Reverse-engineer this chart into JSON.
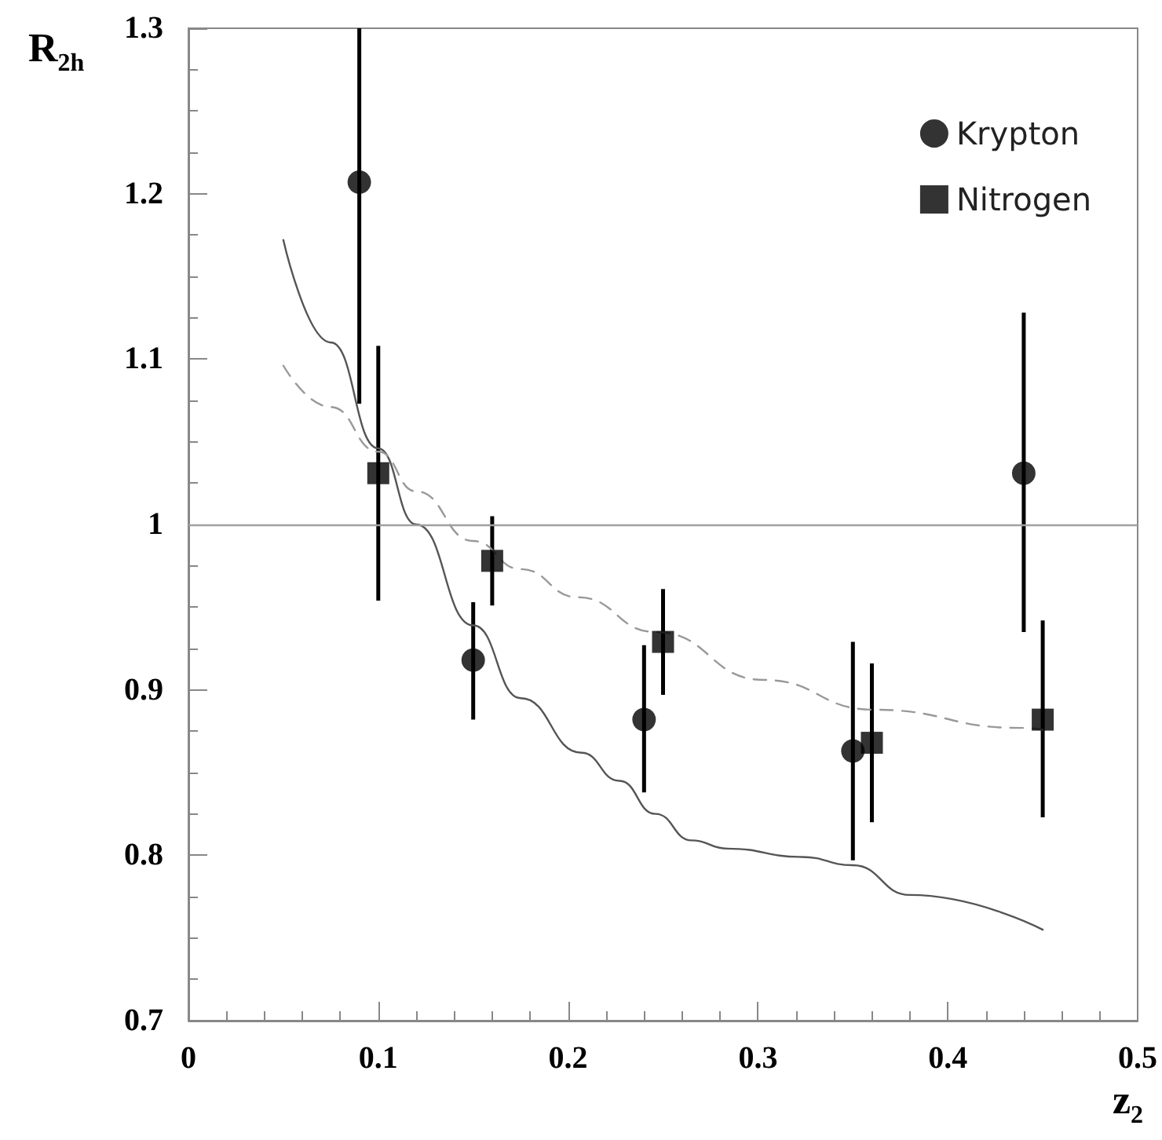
{
  "chart_data": {
    "type": "scatter",
    "xlabel": "z$_{2}$",
    "ylabel": "R$_{2h}$",
    "xlim": [
      0,
      0.5
    ],
    "xticks": [
      0,
      0.1,
      0.2,
      0.3,
      0.4,
      0.5
    ],
    "ylim": [
      0.7,
      1.3
    ],
    "yticks": [
      0.7,
      0.8,
      0.9,
      1,
      1.1,
      1.2,
      1.3
    ],
    "grid": false,
    "legend": "top right",
    "ref_lines": [
      {
        "axis": "y",
        "value": 1,
        "color": "#a0a0a0",
        "line_style": "solid"
      }
    ],
    "series": [
      {
        "name": "Krypton",
        "marker": "circle",
        "color": "#000000",
        "x": [
          0.09,
          0.15,
          0.24,
          0.35,
          0.44
        ],
        "values": [
          1.207,
          0.918,
          0.882,
          0.863,
          1.031
        ],
        "errors": [
          [
            1.073,
            1.3
          ],
          [
            0.882,
            0.953
          ],
          [
            0.838,
            0.927
          ],
          [
            0.797,
            0.929
          ],
          [
            0.935,
            1.128
          ]
        ]
      },
      {
        "name": "Nitrogen",
        "marker": "square",
        "color": "#000000",
        "x": [
          0.1,
          0.16,
          0.25,
          0.36,
          0.45
        ],
        "values": [
          1.031,
          0.978,
          0.929,
          0.868,
          0.882
        ],
        "errors": [
          [
            0.954,
            1.108
          ],
          [
            0.951,
            1.005
          ],
          [
            0.897,
            0.961
          ],
          [
            0.82,
            0.916
          ],
          [
            0.823,
            0.942
          ]
        ]
      },
      {
        "type": "line",
        "marker": "none",
        "line_style": "solid",
        "color": "#555555",
        "x": [
          0.05,
          0.075,
          0.1,
          0.12,
          0.15,
          0.175,
          0.207,
          0.227,
          0.246,
          0.265,
          0.284,
          0.323,
          0.35,
          0.38,
          0.45
        ],
        "values": [
          1.172,
          1.11,
          1.046,
          1.0,
          0.939,
          0.895,
          0.862,
          0.845,
          0.825,
          0.809,
          0.804,
          0.799,
          0.794,
          0.776,
          0.755
        ]
      },
      {
        "type": "line",
        "marker": "none",
        "line_style": "dashed",
        "color": "#999999",
        "x": [
          0.05,
          0.075,
          0.1,
          0.12,
          0.15,
          0.175,
          0.205,
          0.246,
          0.303,
          0.361,
          0.438,
          0.45
        ],
        "values": [
          1.096,
          1.071,
          1.044,
          1.02,
          0.99,
          0.973,
          0.956,
          0.935,
          0.906,
          0.888,
          0.877,
          0.876
        ]
      }
    ]
  }
}
